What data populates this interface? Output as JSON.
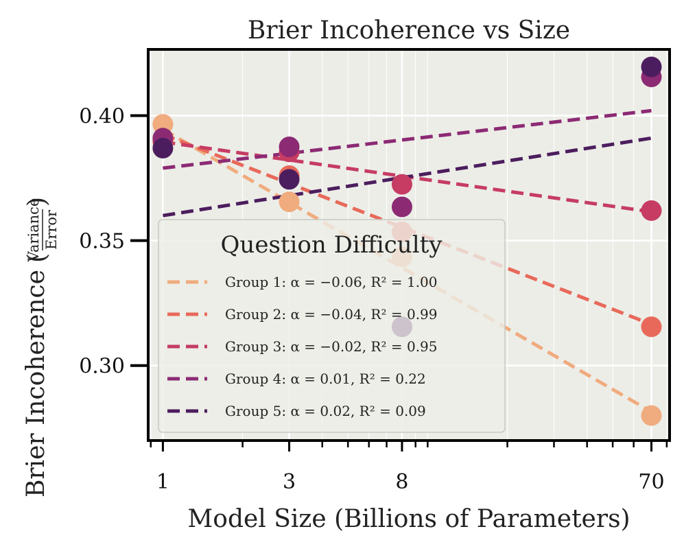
{
  "chart_data": {
    "type": "scatter",
    "title": "Brier Incoherence vs Size",
    "xlabel": "Model Size (Billions of Parameters)",
    "ylabel_main": "Brier Incoherence",
    "ylabel_frac_num": "Variance",
    "ylabel_frac_den": "Error",
    "x_scale": "log",
    "xlim": [
      0.88,
      82
    ],
    "ylim": [
      0.27,
      0.4265
    ],
    "x_ticks": [
      1,
      3,
      8,
      70
    ],
    "x_tick_labels": [
      "1",
      "3",
      "8",
      "70"
    ],
    "y_ticks": [
      0.3,
      0.35,
      0.4
    ],
    "y_tick_labels": [
      "0.30",
      "0.35",
      "0.40"
    ],
    "grid": true,
    "x": [
      1,
      3,
      8,
      70
    ],
    "legend": {
      "title": "Question Difficulty",
      "position": "lower-left"
    },
    "series": [
      {
        "name": "Group 1",
        "label": "Group 1: α = −0.06, R² = 1.00",
        "color": "#f0ab7e",
        "values": [
          0.3965,
          0.3655,
          0.3435,
          0.28
        ],
        "fit": [
          0.3945,
          0.2815
        ]
      },
      {
        "name": "Group 2",
        "label": "Group 2: α = −0.04, R² = 0.99",
        "color": "#e8695a",
        "values": [
          0.3895,
          0.376,
          0.3535,
          0.3155
        ],
        "fit": [
          0.3925,
          0.3165
        ]
      },
      {
        "name": "Group 3",
        "label": "Group 3: α = −0.02, R² = 0.95",
        "color": "#c63c63",
        "values": [
          0.3905,
          0.3855,
          0.3725,
          0.362
        ],
        "fit": [
          0.3895,
          0.3615
        ]
      },
      {
        "name": "Group 4",
        "label": "Group 4: α = 0.01, R² = 0.22",
        "color": "#8c2a74",
        "values": [
          0.391,
          0.3875,
          0.3635,
          0.4155
        ],
        "fit": [
          0.379,
          0.402
        ]
      },
      {
        "name": "Group 5",
        "label": "Group 5: α = 0.02, R² = 0.09",
        "color": "#4c1d5e",
        "values": [
          0.387,
          0.3745,
          0.3155,
          0.4195
        ],
        "fit": [
          0.36,
          0.391
        ]
      }
    ]
  }
}
